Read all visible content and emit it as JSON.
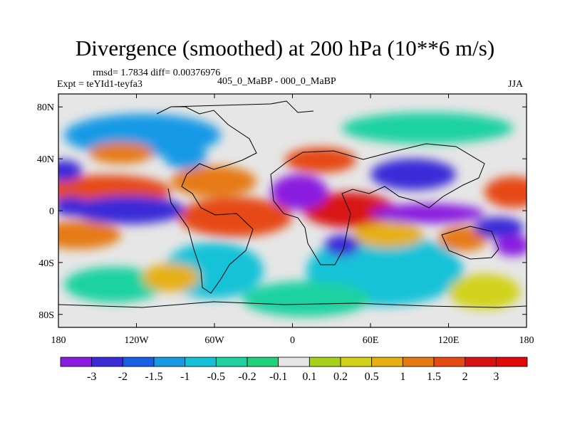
{
  "title": "Divergence (smoothed) at 200 hPa (10**6 m/s)",
  "stats": {
    "rmsd": "rmsd= 1.7834 diff= 0.00376976",
    "expt": "Expt = teYId1-teyfa3"
  },
  "subtitle": "405_0_MaBP - 000_0_MaBP",
  "season": "JJA",
  "lon_ticks": [
    "180",
    "120W",
    "60W",
    "0",
    "60E",
    "120E",
    "180"
  ],
  "lat_ticks": [
    "80N",
    "40N",
    "0",
    "40S",
    "80S"
  ],
  "colorbar": {
    "labels": [
      "-3",
      "-2",
      "-1.5",
      "-1",
      "-0.5",
      "-0.2",
      "-0.1",
      "0.1",
      "0.2",
      "0.5",
      "1",
      "1.5",
      "2",
      "3"
    ],
    "colors": [
      "#8a1be0",
      "#3a2ad8",
      "#1a5ee6",
      "#169ae6",
      "#14c2d8",
      "#1ed2a0",
      "#20d27a",
      "#e6e6e6",
      "#a6d21e",
      "#d2d21a",
      "#e6b012",
      "#e67a12",
      "#e64a12",
      "#d81212",
      "#e00a0a"
    ]
  }
}
